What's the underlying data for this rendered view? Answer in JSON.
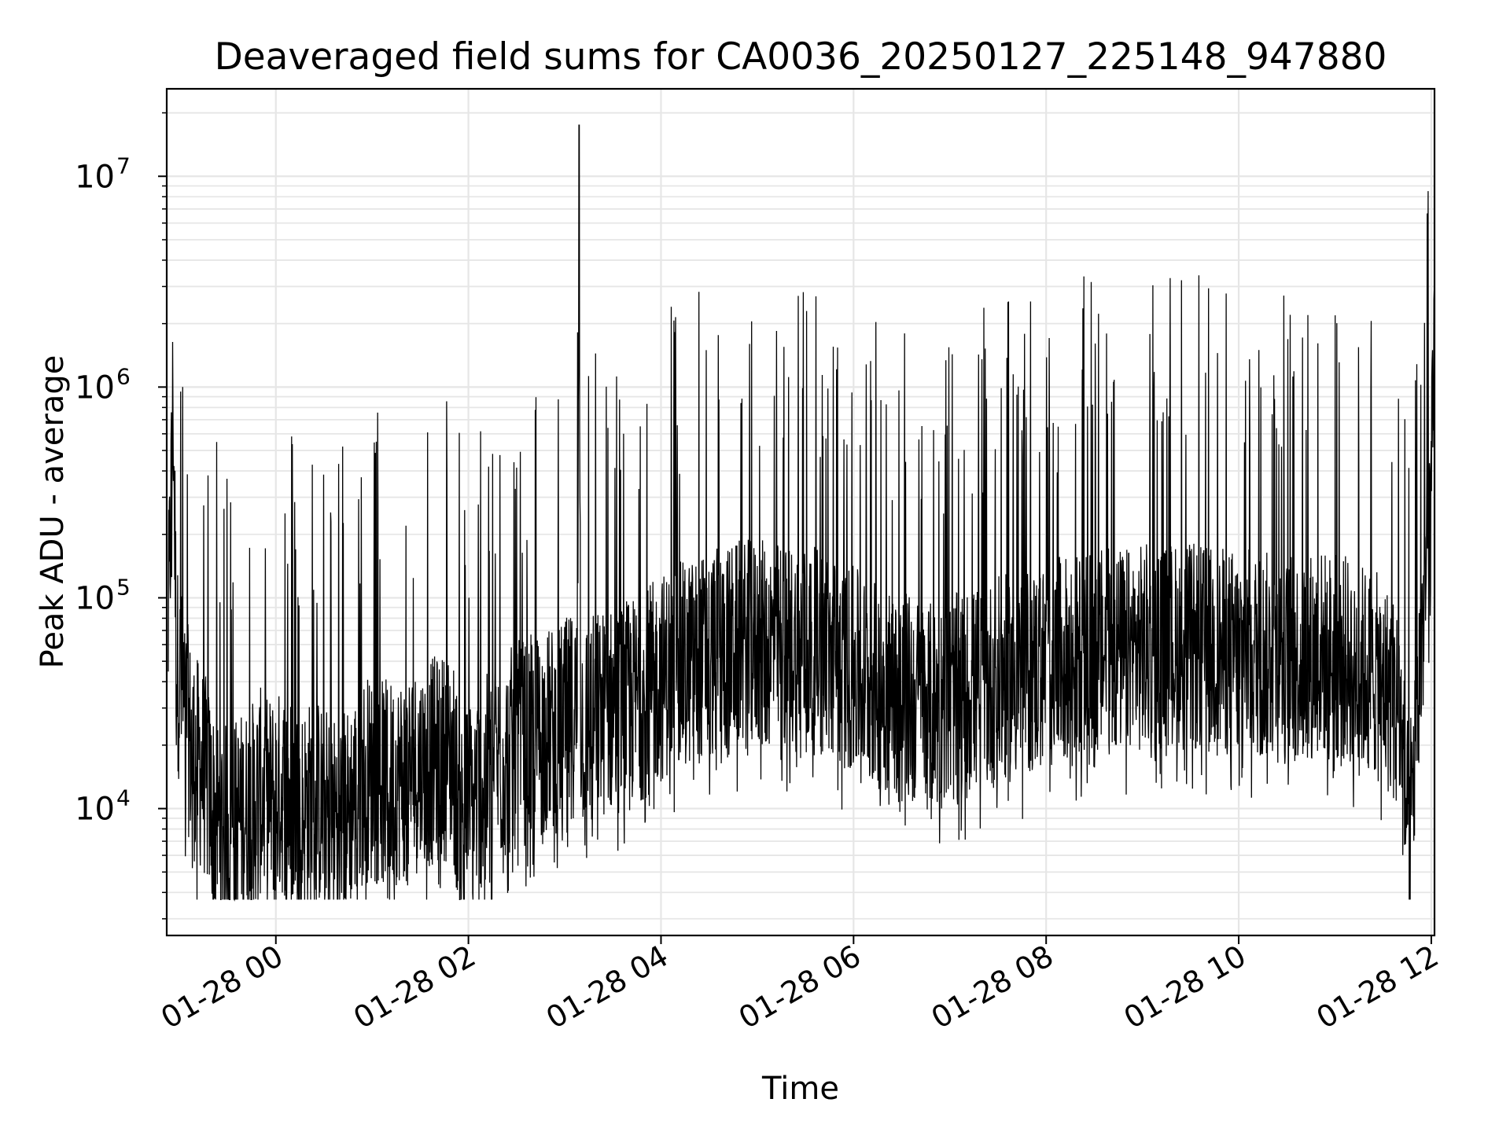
{
  "chart_data": {
    "type": "line",
    "title": "Deaveraged field sums for CA0036_20250127_225148_947880",
    "xlabel": "Time",
    "ylabel": "Peak ADU - average",
    "yscale": "log",
    "ylim": [
      2500,
      26000000
    ],
    "xlim": [
      "2025-01-27 22:52",
      "2025-01-28 12:02"
    ],
    "grid": true,
    "line_color": "#000000",
    "grid_color": "#e6e6e6",
    "x_ticks": [
      "01-28 00",
      "01-28 02",
      "01-28 04",
      "01-28 06",
      "01-28 08",
      "01-28 10",
      "01-28 12"
    ],
    "x_tick_values": [
      "2025-01-28 00:00",
      "2025-01-28 02:00",
      "2025-01-28 04:00",
      "2025-01-28 06:00",
      "2025-01-28 08:00",
      "2025-01-28 10:00",
      "2025-01-28 12:00"
    ],
    "y_ticks": [
      {
        "base": "10",
        "exp": "4",
        "value": 10000
      },
      {
        "base": "10",
        "exp": "5",
        "value": 100000
      },
      {
        "base": "10",
        "exp": "6",
        "value": 1000000
      },
      {
        "base": "10",
        "exp": "7",
        "value": 10000000
      }
    ],
    "series": [
      {
        "x": [
          "2025-01-27 22:53",
          "2025-01-27 22:56",
          "2025-01-27 22:58",
          "2025-01-27 23:03",
          "2025-01-27 23:08",
          "2025-01-27 23:15",
          "2025-01-27 23:22",
          "2025-01-27 23:30",
          "2025-01-27 23:36",
          "2025-01-27 23:44",
          "2025-01-27 23:50",
          "2025-01-27 23:56",
          "2025-01-28 00:05",
          "2025-01-28 00:15",
          "2025-01-28 00:25",
          "2025-01-28 00:35",
          "2025-01-28 00:45",
          "2025-01-28 00:55",
          "2025-01-28 01:10",
          "2025-01-28 01:25",
          "2025-01-28 01:40",
          "2025-01-28 01:50",
          "2025-01-28 01:55",
          "2025-01-28 02:05",
          "2025-01-28 02:15",
          "2025-01-28 02:30",
          "2025-01-28 02:45",
          "2025-01-28 03:00",
          "2025-01-28 03:08",
          "2025-01-28 03:09",
          "2025-01-28 03:10",
          "2025-01-28 03:20",
          "2025-01-28 03:35",
          "2025-01-28 03:50",
          "2025-01-28 04:05",
          "2025-01-28 04:20",
          "2025-01-28 04:35",
          "2025-01-28 04:50",
          "2025-01-28 05:10",
          "2025-01-28 05:30",
          "2025-01-28 05:50",
          "2025-01-28 06:10",
          "2025-01-28 06:30",
          "2025-01-28 06:50",
          "2025-01-28 07:10",
          "2025-01-28 07:30",
          "2025-01-28 07:50",
          "2025-01-28 08:10",
          "2025-01-28 08:30",
          "2025-01-28 08:50",
          "2025-01-28 09:10",
          "2025-01-28 09:30",
          "2025-01-28 09:50",
          "2025-01-28 10:10",
          "2025-01-28 10:30",
          "2025-01-28 10:50",
          "2025-01-28 11:10",
          "2025-01-28 11:30",
          "2025-01-28 11:40",
          "2025-01-28 11:46",
          "2025-01-28 11:50",
          "2025-01-28 11:55",
          "2025-01-28 12:00",
          "2025-01-28 12:02"
        ],
        "y": [
          70000,
          900000,
          50000,
          30000,
          18000,
          15000,
          9000,
          8000,
          9000,
          10000,
          12000,
          11000,
          12000,
          10000,
          11000,
          9000,
          10000,
          14000,
          13000,
          15000,
          17000,
          18000,
          9000,
          12000,
          15000,
          20000,
          22000,
          25000,
          30000,
          17500000,
          25000,
          28000,
          30000,
          35000,
          45000,
          50000,
          55000,
          60000,
          60000,
          58000,
          50000,
          40000,
          35000,
          30000,
          35000,
          40000,
          45000,
          50000,
          55000,
          55000,
          60000,
          58000,
          55000,
          55000,
          50000,
          55000,
          50000,
          40000,
          30000,
          7000,
          20000,
          80000,
          300000,
          1200000
        ]
      }
    ]
  }
}
